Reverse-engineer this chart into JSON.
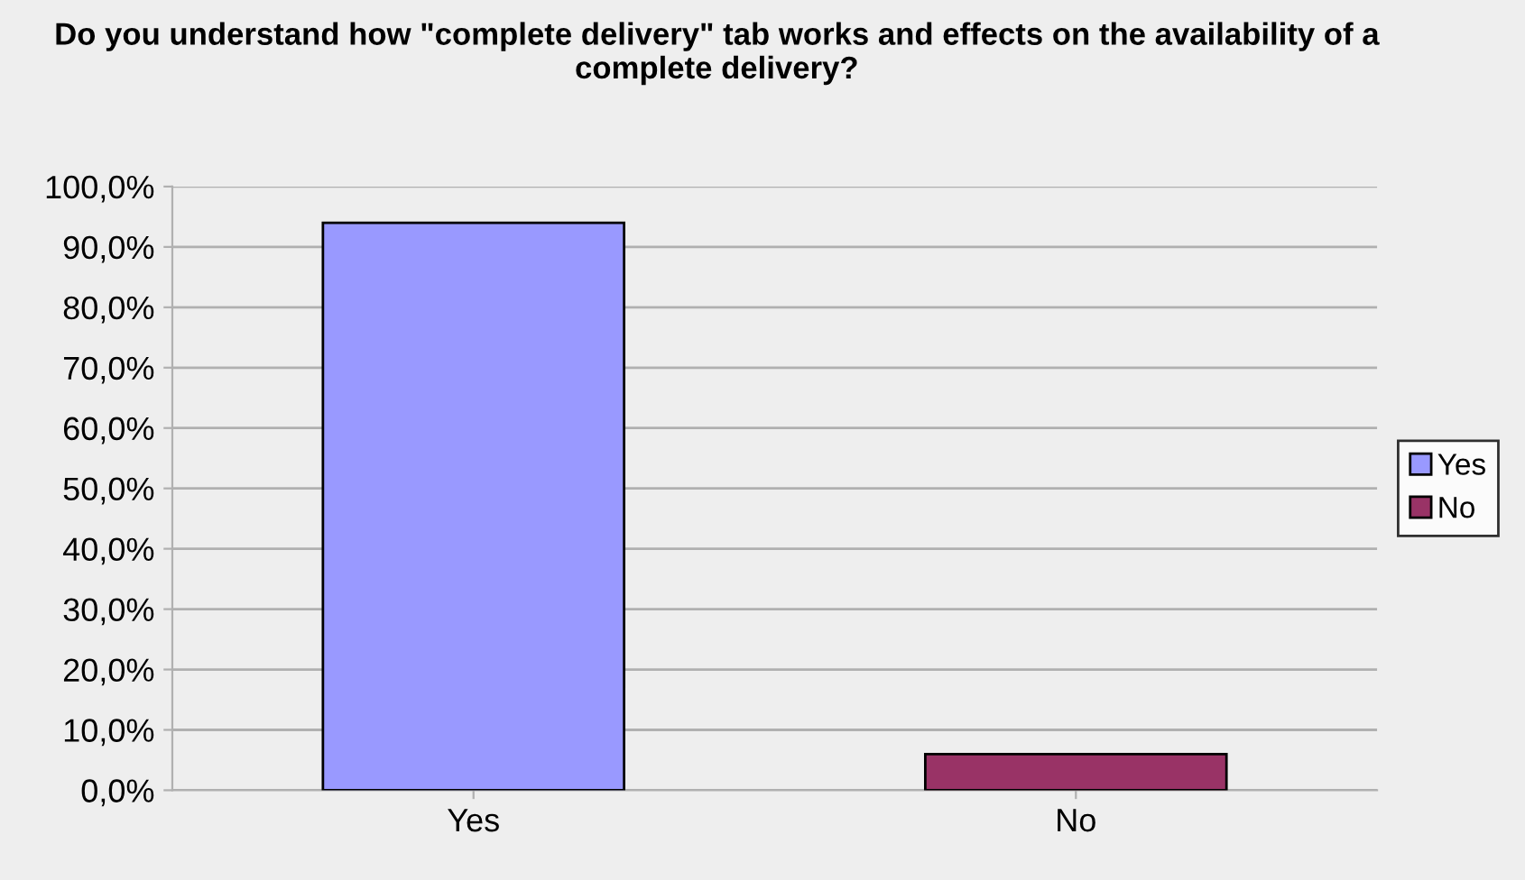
{
  "chart_data": {
    "type": "bar",
    "title": "Do you understand how \"complete delivery\" tab works and effects on the availability of a complete delivery?",
    "categories": [
      "Yes",
      "No"
    ],
    "series": [
      {
        "name": "Yes",
        "color": "#9999ff",
        "values": [
          94.0,
          null
        ]
      },
      {
        "name": "No",
        "color": "#993366",
        "values": [
          null,
          6.0
        ]
      }
    ],
    "ylim": [
      0,
      100
    ],
    "yticks": [
      {
        "value": 0,
        "label": "0,0%"
      },
      {
        "value": 10,
        "label": "10,0%"
      },
      {
        "value": 20,
        "label": "20,0%"
      },
      {
        "value": 30,
        "label": "30,0%"
      },
      {
        "value": 40,
        "label": "40,0%"
      },
      {
        "value": 50,
        "label": "50,0%"
      },
      {
        "value": 60,
        "label": "60,0%"
      },
      {
        "value": 70,
        "label": "70,0%"
      },
      {
        "value": 80,
        "label": "80,0%"
      },
      {
        "value": 90,
        "label": "90,0%"
      },
      {
        "value": 100,
        "label": "100,0%"
      }
    ],
    "grid": "y",
    "legend": "right"
  }
}
